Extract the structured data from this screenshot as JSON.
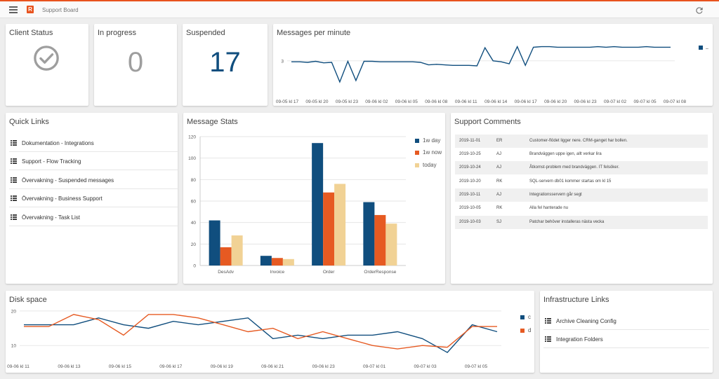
{
  "app": {
    "logo_letter": "R",
    "title": "Support Board"
  },
  "colors": {
    "accent": "#e8531e",
    "series_blue": "#104e7e",
    "series_orange": "#e65a22",
    "series_sand": "#f1d295",
    "ok_gray": "#9e9e9e"
  },
  "cards": {
    "client_status": {
      "title": "Client Status",
      "icon": "check-circle-icon"
    },
    "in_progress": {
      "title": "In progress",
      "value": "0"
    },
    "suspended": {
      "title": "Suspended",
      "value": "17"
    },
    "messages_per_minute": {
      "title": "Messages per minute"
    },
    "quick_links": {
      "title": "Quick Links"
    },
    "message_stats": {
      "title": "Message Stats"
    },
    "support_comments": {
      "title": "Support Comments"
    },
    "disk_space": {
      "title": "Disk space"
    },
    "infrastructure_links": {
      "title": "Infrastructure Links"
    }
  },
  "quick_links": [
    {
      "label": "Dokumentation - Integrations",
      "icon": "list-icon"
    },
    {
      "label": "Support - Flow Tracking",
      "icon": "list-icon"
    },
    {
      "label": "Övervakning - Suspended messages",
      "icon": "list-icon"
    },
    {
      "label": "Övervakning - Business Support",
      "icon": "list-icon"
    },
    {
      "label": "Övervakning - Task List",
      "icon": "list-icon"
    }
  ],
  "infrastructure_links": [
    {
      "label": "Archive Cleaning Config",
      "icon": "list-icon"
    },
    {
      "label": "Integration Folders",
      "icon": "list-icon"
    }
  ],
  "support_comments": [
    {
      "date": "2019-11-01",
      "initials": "ER",
      "text": "Customer-flödet ligger nere. CRM-ganget har bollen."
    },
    {
      "date": "2019-10-25",
      "initials": "AJ",
      "text": "Brandväggen uppe igen, allt verkar lira"
    },
    {
      "date": "2019-10-24",
      "initials": "AJ",
      "text": "Åtkomst-problem med brandväggen. IT felsöker."
    },
    {
      "date": "2019-10-20",
      "initials": "RK",
      "text": "SQL-servern db01 kommer startas om kl 15"
    },
    {
      "date": "2019-10-11",
      "initials": "AJ",
      "text": "Integrationsservern går segt"
    },
    {
      "date": "2019-10-05",
      "initials": "RK",
      "text": "Alla fel hanterade nu"
    },
    {
      "date": "2019-10-03",
      "initials": "SJ",
      "text": "Patchar behöver installeras nästa vecka"
    }
  ],
  "chart_data": [
    {
      "id": "messages_per_minute",
      "type": "line",
      "ylim": [
        0,
        5
      ],
      "yticks": [
        3
      ],
      "ticks": [
        "09-05 kl 17",
        "09-05 kl 20",
        "09-05 kl 23",
        "09-06 kl 02",
        "09-06 kl 05",
        "09-06 kl 08",
        "09-06 kl 11",
        "09-06 kl 14",
        "09-06 kl 17",
        "09-06 kl 20",
        "09-06 kl 23",
        "09-07 kl 02",
        "09-07 kl 05",
        "09-07 kl 08"
      ],
      "legend_position": "right",
      "series": [
        {
          "values": [
            2.9,
            2.9,
            2.85,
            2.95,
            2.8,
            2.85,
            0.9,
            2.95,
            1.05,
            2.95,
            2.95,
            2.9,
            2.9,
            2.9,
            2.9,
            2.9,
            2.85,
            2.6,
            2.65,
            2.6,
            2.55,
            2.55,
            2.55,
            2.5,
            4.3,
            3.0,
            2.9,
            2.7,
            4.4,
            2.55,
            4.35,
            4.4,
            4.4,
            4.35,
            4.35,
            4.35,
            4.35,
            4.35,
            4.4,
            4.35,
            4.4,
            4.35,
            4.35,
            4.35,
            4.4,
            4.35,
            4.35,
            4.35
          ]
        }
      ]
    },
    {
      "id": "message_stats",
      "type": "bar",
      "categories": [
        "DesAdv",
        "Invoice",
        "Order",
        "OrderResponse"
      ],
      "ylim": [
        0,
        120
      ],
      "yticks": [
        0,
        20,
        40,
        60,
        80,
        100,
        120
      ],
      "legend_position": "right",
      "series": [
        {
          "name": "1w day",
          "values": [
            42,
            9,
            114,
            59
          ]
        },
        {
          "name": "1w now",
          "values": [
            17,
            7,
            68,
            47
          ]
        },
        {
          "name": "today",
          "values": [
            28,
            6,
            76,
            39
          ]
        }
      ]
    },
    {
      "id": "disk_space",
      "type": "line",
      "ylim": [
        7,
        21
      ],
      "yticks": [
        10,
        20
      ],
      "ticks": [
        "09-06 kl 11",
        "09-06 kl 13",
        "09-06 kl 15",
        "09-06 kl 17",
        "09-06 kl 19",
        "09-06 kl 21",
        "09-06 kl 23",
        "09-07 kl 01",
        "09-07 kl 03",
        "09-07 kl 05"
      ],
      "legend_position": "right",
      "series": [
        {
          "name": "c",
          "values": [
            16,
            16,
            16,
            18,
            16,
            15,
            17,
            16,
            17,
            18,
            12,
            13,
            12,
            13,
            13,
            14,
            12,
            8,
            16,
            14
          ]
        },
        {
          "name": "d",
          "values": [
            15.5,
            15.5,
            19,
            17.5,
            13,
            19,
            19,
            18,
            16,
            14,
            15,
            12,
            14,
            12,
            10,
            9,
            10,
            9.5,
            15.5,
            15.5
          ]
        }
      ]
    }
  ]
}
